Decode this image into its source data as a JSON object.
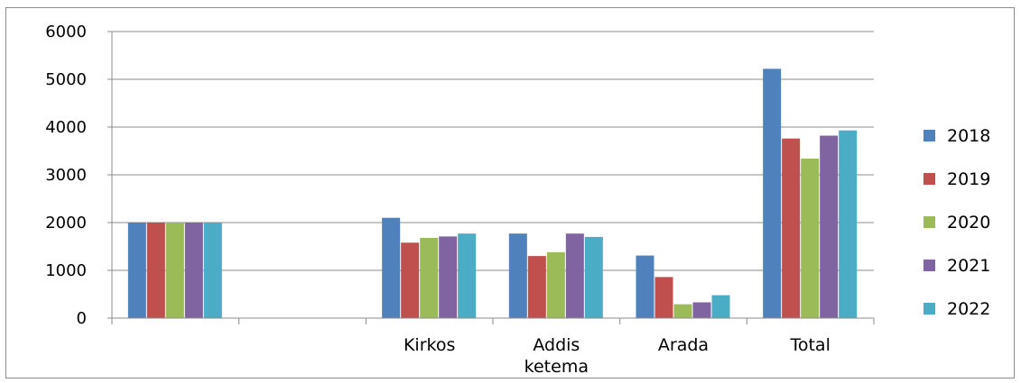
{
  "chart_data": {
    "type": "bar",
    "categories": [
      "",
      "",
      "Kirkos",
      "Addis\nketema",
      "Arada",
      "Total"
    ],
    "series": [
      {
        "name": "2018",
        "color": "#4f81bd",
        "values": [
          2000,
          null,
          2100,
          1770,
          1310,
          5220
        ]
      },
      {
        "name": "2019",
        "color": "#c0504d",
        "values": [
          2000,
          null,
          1580,
          1300,
          860,
          3760
        ]
      },
      {
        "name": "2020",
        "color": "#9bbb59",
        "values": [
          2000,
          null,
          1680,
          1380,
          290,
          3340
        ]
      },
      {
        "name": "2021",
        "color": "#8064a2",
        "values": [
          2000,
          null,
          1710,
          1770,
          330,
          3820
        ]
      },
      {
        "name": "2022",
        "color": "#4bacc6",
        "values": [
          2000,
          null,
          1770,
          1700,
          480,
          3930
        ]
      }
    ],
    "ylim": [
      0,
      6000
    ],
    "yticks": [
      0,
      1000,
      2000,
      3000,
      4000,
      5000,
      6000
    ],
    "grid": true,
    "legend_position": "right",
    "title": "",
    "xlabel": "",
    "ylabel": ""
  }
}
